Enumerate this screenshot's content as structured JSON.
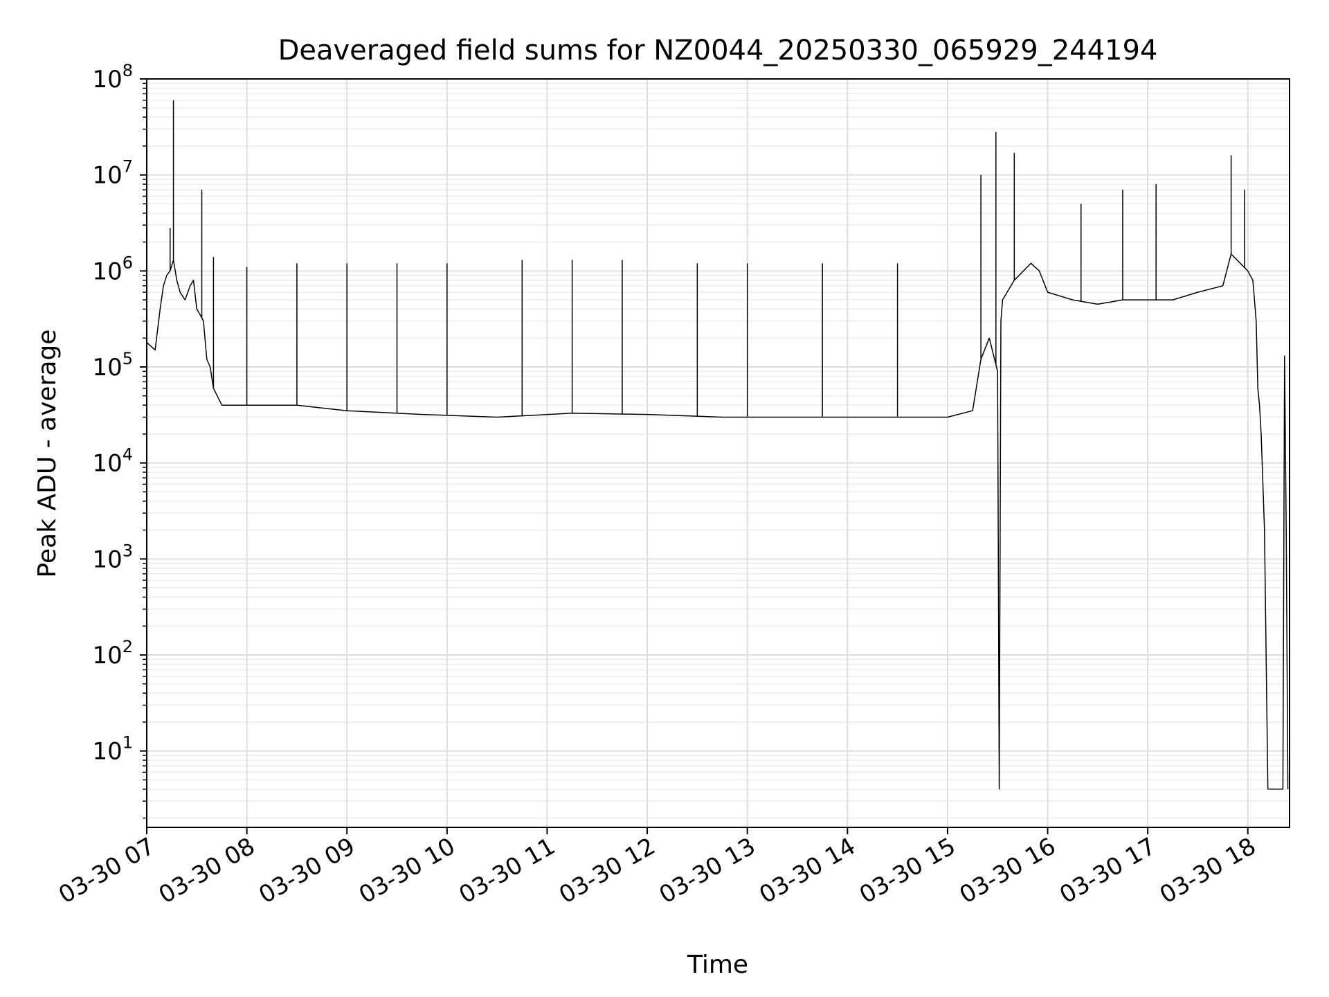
{
  "chart_data": {
    "type": "line",
    "title": "Deaveraged field sums for NZ0044_20250330_065929_244194",
    "xlabel": "Time",
    "ylabel": "Peak ADU - average",
    "yscale": "log",
    "grid": true,
    "xlim": [
      "2025-03-30 07:00",
      "2025-03-30 18:25"
    ],
    "ylim": [
      1.6,
      100000000
    ],
    "x_tick_labels": [
      "03-30 07",
      "03-30 08",
      "03-30 09",
      "03-30 10",
      "03-30 11",
      "03-30 12",
      "03-30 13",
      "03-30 14",
      "03-30 15",
      "03-30 16",
      "03-30 17",
      "03-30 18"
    ],
    "y_tick_values": [
      10,
      100,
      1000,
      10000,
      100000,
      1000000,
      10000000,
      100000000
    ],
    "y_tick_exponents": [
      "1",
      "2",
      "3",
      "4",
      "5",
      "6",
      "7",
      "8"
    ],
    "series": [
      {
        "color": "#000000",
        "x": [
          "2025-03-30 07:00",
          "2025-03-30 07:05",
          "2025-03-30 07:08",
          "2025-03-30 07:10",
          "2025-03-30 07:12",
          "2025-03-30 07:14",
          "2025-03-30 07:16",
          "2025-03-30 07:18",
          "2025-03-30 07:20",
          "2025-03-30 07:23",
          "2025-03-30 07:26",
          "2025-03-30 07:28",
          "2025-03-30 07:30",
          "2025-03-30 07:32",
          "2025-03-30 07:34",
          "2025-03-30 07:36",
          "2025-03-30 07:38",
          "2025-03-30 07:40",
          "2025-03-30 07:45",
          "2025-03-30 08:00",
          "2025-03-30 08:30",
          "2025-03-30 09:00",
          "2025-03-30 09:45",
          "2025-03-30 10:30",
          "2025-03-30 11:15",
          "2025-03-30 12:00",
          "2025-03-30 12:45",
          "2025-03-30 13:30",
          "2025-03-30 14:15",
          "2025-03-30 15:00",
          "2025-03-30 15:15",
          "2025-03-30 15:20",
          "2025-03-30 15:25",
          "2025-03-30 15:30",
          "2025-03-30 15:31",
          "2025-03-30 15:32",
          "2025-03-30 15:33",
          "2025-03-30 15:40",
          "2025-03-30 15:50",
          "2025-03-30 15:55",
          "2025-03-30 16:00",
          "2025-03-30 16:15",
          "2025-03-30 16:30",
          "2025-03-30 16:45",
          "2025-03-30 17:00",
          "2025-03-30 17:15",
          "2025-03-30 17:30",
          "2025-03-30 17:45",
          "2025-03-30 17:50",
          "2025-03-30 18:00",
          "2025-03-30 18:03",
          "2025-03-30 18:05",
          "2025-03-30 18:06",
          "2025-03-30 18:07",
          "2025-03-30 18:08",
          "2025-03-30 18:10",
          "2025-03-30 18:12",
          "2025-03-30 18:20",
          "2025-03-30 18:21",
          "2025-03-30 18:22",
          "2025-03-30 18:23",
          "2025-03-30 18:24"
        ],
        "y": [
          180000,
          150000,
          400000,
          700000,
          900000,
          1000000,
          1300000,
          800000,
          600000,
          500000,
          700000,
          800000,
          400000,
          350000,
          300000,
          120000,
          100000,
          60000,
          40000,
          40000,
          40000,
          35000,
          32000,
          30000,
          33000,
          32000,
          30000,
          30000,
          30000,
          30000,
          35000,
          120000,
          200000,
          90000,
          4,
          300000,
          500000,
          800000,
          1200000,
          1000000,
          600000,
          500000,
          450000,
          500000,
          500000,
          500000,
          600000,
          700000,
          1500000,
          1000000,
          800000,
          300000,
          60000,
          40000,
          20000,
          2000,
          4,
          4,
          4,
          130000,
          2000,
          4
        ]
      }
    ],
    "spikes": [
      {
        "x": "2025-03-30 07:14",
        "y": 2800000
      },
      {
        "x": "2025-03-30 07:16",
        "y": 60000000
      },
      {
        "x": "2025-03-30 07:33",
        "y": 7000000
      },
      {
        "x": "2025-03-30 07:40",
        "y": 1400000
      },
      {
        "x": "2025-03-30 08:00",
        "y": 1100000
      },
      {
        "x": "2025-03-30 08:30",
        "y": 1200000
      },
      {
        "x": "2025-03-30 09:00",
        "y": 1200000
      },
      {
        "x": "2025-03-30 09:30",
        "y": 1200000
      },
      {
        "x": "2025-03-30 10:00",
        "y": 1200000
      },
      {
        "x": "2025-03-30 10:45",
        "y": 1300000
      },
      {
        "x": "2025-03-30 11:15",
        "y": 1300000
      },
      {
        "x": "2025-03-30 11:45",
        "y": 1300000
      },
      {
        "x": "2025-03-30 12:30",
        "y": 1200000
      },
      {
        "x": "2025-03-30 13:00",
        "y": 1200000
      },
      {
        "x": "2025-03-30 13:45",
        "y": 1200000
      },
      {
        "x": "2025-03-30 14:30",
        "y": 1200000
      },
      {
        "x": "2025-03-30 15:20",
        "y": 10000000
      },
      {
        "x": "2025-03-30 15:29",
        "y": 28000000
      },
      {
        "x": "2025-03-30 15:40",
        "y": 17000000
      },
      {
        "x": "2025-03-30 16:20",
        "y": 5000000
      },
      {
        "x": "2025-03-30 16:45",
        "y": 7000000
      },
      {
        "x": "2025-03-30 17:05",
        "y": 8000000
      },
      {
        "x": "2025-03-30 17:50",
        "y": 16000000
      },
      {
        "x": "2025-03-30 17:58",
        "y": 7000000
      }
    ]
  }
}
